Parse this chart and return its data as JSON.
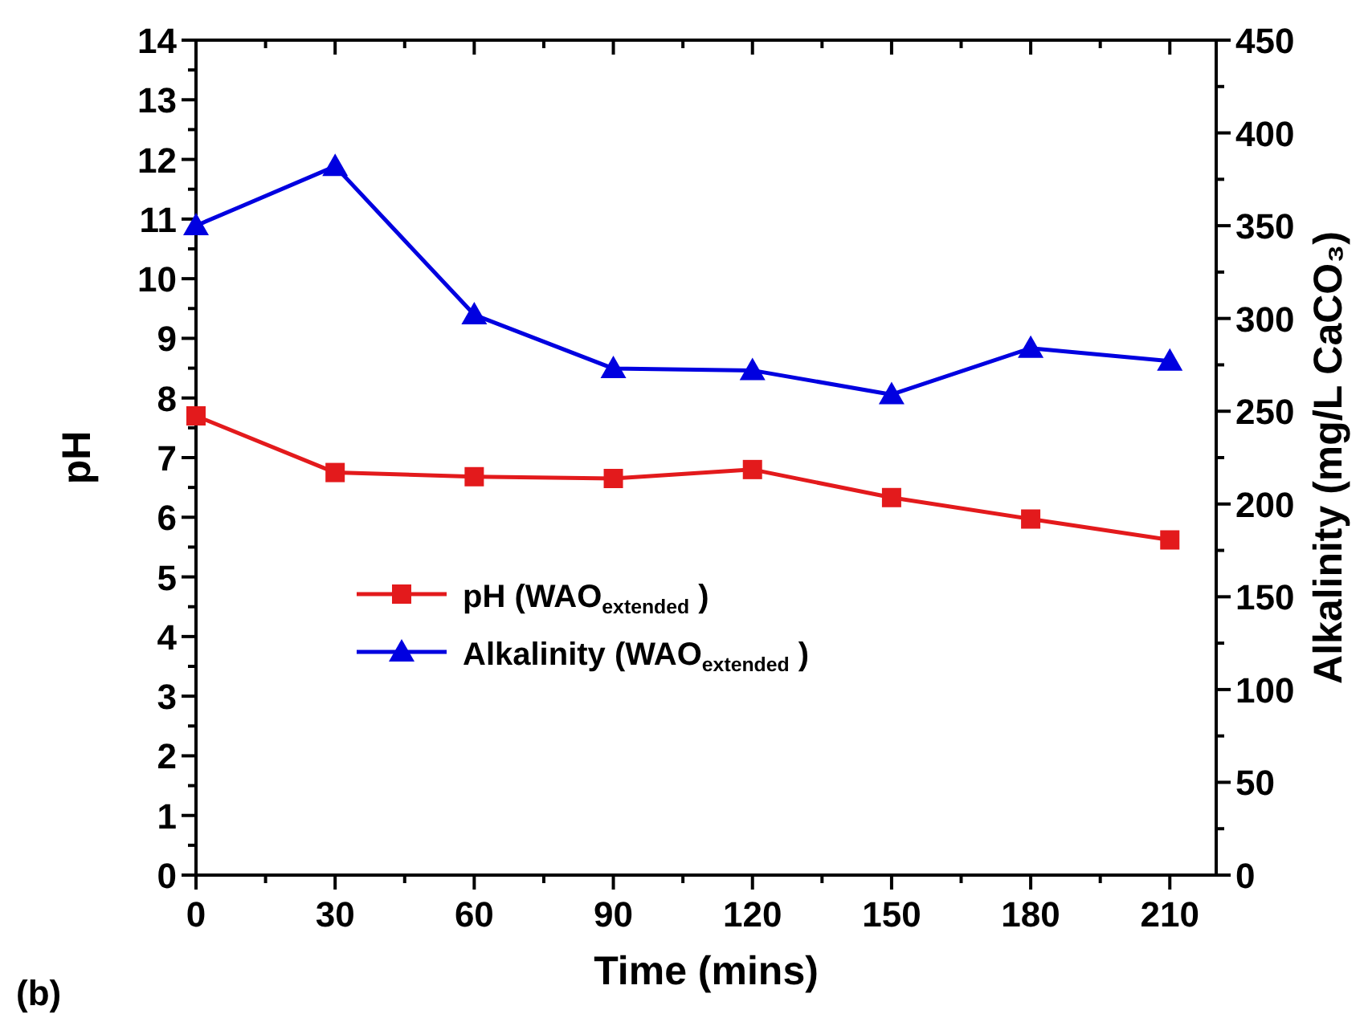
{
  "chart_data": {
    "type": "line",
    "xlabel": "Time (mins)",
    "ylabel": "pH",
    "y2label": "Alkalinity (mg/L CaCO₃)",
    "annotations": [
      "(b)"
    ],
    "x": [
      0,
      30,
      60,
      90,
      120,
      150,
      180,
      210
    ],
    "xlim": [
      0,
      220
    ],
    "xticks": [
      0,
      {
        "value": 15,
        "label": null
      },
      30,
      {
        "value": 45,
        "label": null
      },
      60,
      {
        "value": 75,
        "label": null
      },
      90,
      {
        "value": 105,
        "label": null
      },
      120,
      {
        "value": 135,
        "label": null
      },
      150,
      {
        "value": 165,
        "label": null
      },
      180,
      {
        "value": 195,
        "label": null
      },
      210
    ],
    "ylim": [
      0,
      14
    ],
    "yticks": [
      0,
      {
        "value": 0.5,
        "label": null
      },
      1,
      {
        "value": 1.5,
        "label": null
      },
      2,
      {
        "value": 2.5,
        "label": null
      },
      3,
      {
        "value": 3.5,
        "label": null
      },
      4,
      {
        "value": 4.5,
        "label": null
      },
      5,
      {
        "value": 5.5,
        "label": null
      },
      6,
      {
        "value": 6.5,
        "label": null
      },
      7,
      {
        "value": 7.5,
        "label": null
      },
      8,
      {
        "value": 8.5,
        "label": null
      },
      9,
      {
        "value": 9.5,
        "label": null
      },
      10,
      {
        "value": 10.5,
        "label": null
      },
      11,
      {
        "value": 11.5,
        "label": null
      },
      12,
      {
        "value": 12.5,
        "label": null
      },
      13,
      {
        "value": 13.5,
        "label": null
      },
      14
    ],
    "y2lim": [
      0,
      450
    ],
    "y2ticks": [
      0,
      {
        "value": 25,
        "label": null
      },
      50,
      {
        "value": 75,
        "label": null
      },
      100,
      {
        "value": 125,
        "label": null
      },
      150,
      {
        "value": 175,
        "label": null
      },
      200,
      {
        "value": 225,
        "label": null
      },
      250,
      {
        "value": 275,
        "label": null
      },
      300,
      {
        "value": 325,
        "label": null
      },
      350,
      {
        "value": 375,
        "label": null
      },
      400,
      {
        "value": 425,
        "label": null
      },
      450
    ],
    "legend": "bottom left",
    "grid": false,
    "line_style": "solid",
    "series": [
      {
        "name": "pH (WAO$_{extended}$)",
        "color": "#e31a1c",
        "marker": "square",
        "values": [
          7.7,
          6.75,
          6.68,
          6.65,
          6.8,
          6.33,
          5.97,
          5.62
        ]
      },
      {
        "name": "Alkalinity (WAO$_{extended}$)",
        "color": "#0000e0",
        "marker": "triangle",
        "axis": "y2",
        "values": [
          350,
          382,
          302,
          273,
          272,
          259,
          284,
          277
        ]
      }
    ]
  }
}
